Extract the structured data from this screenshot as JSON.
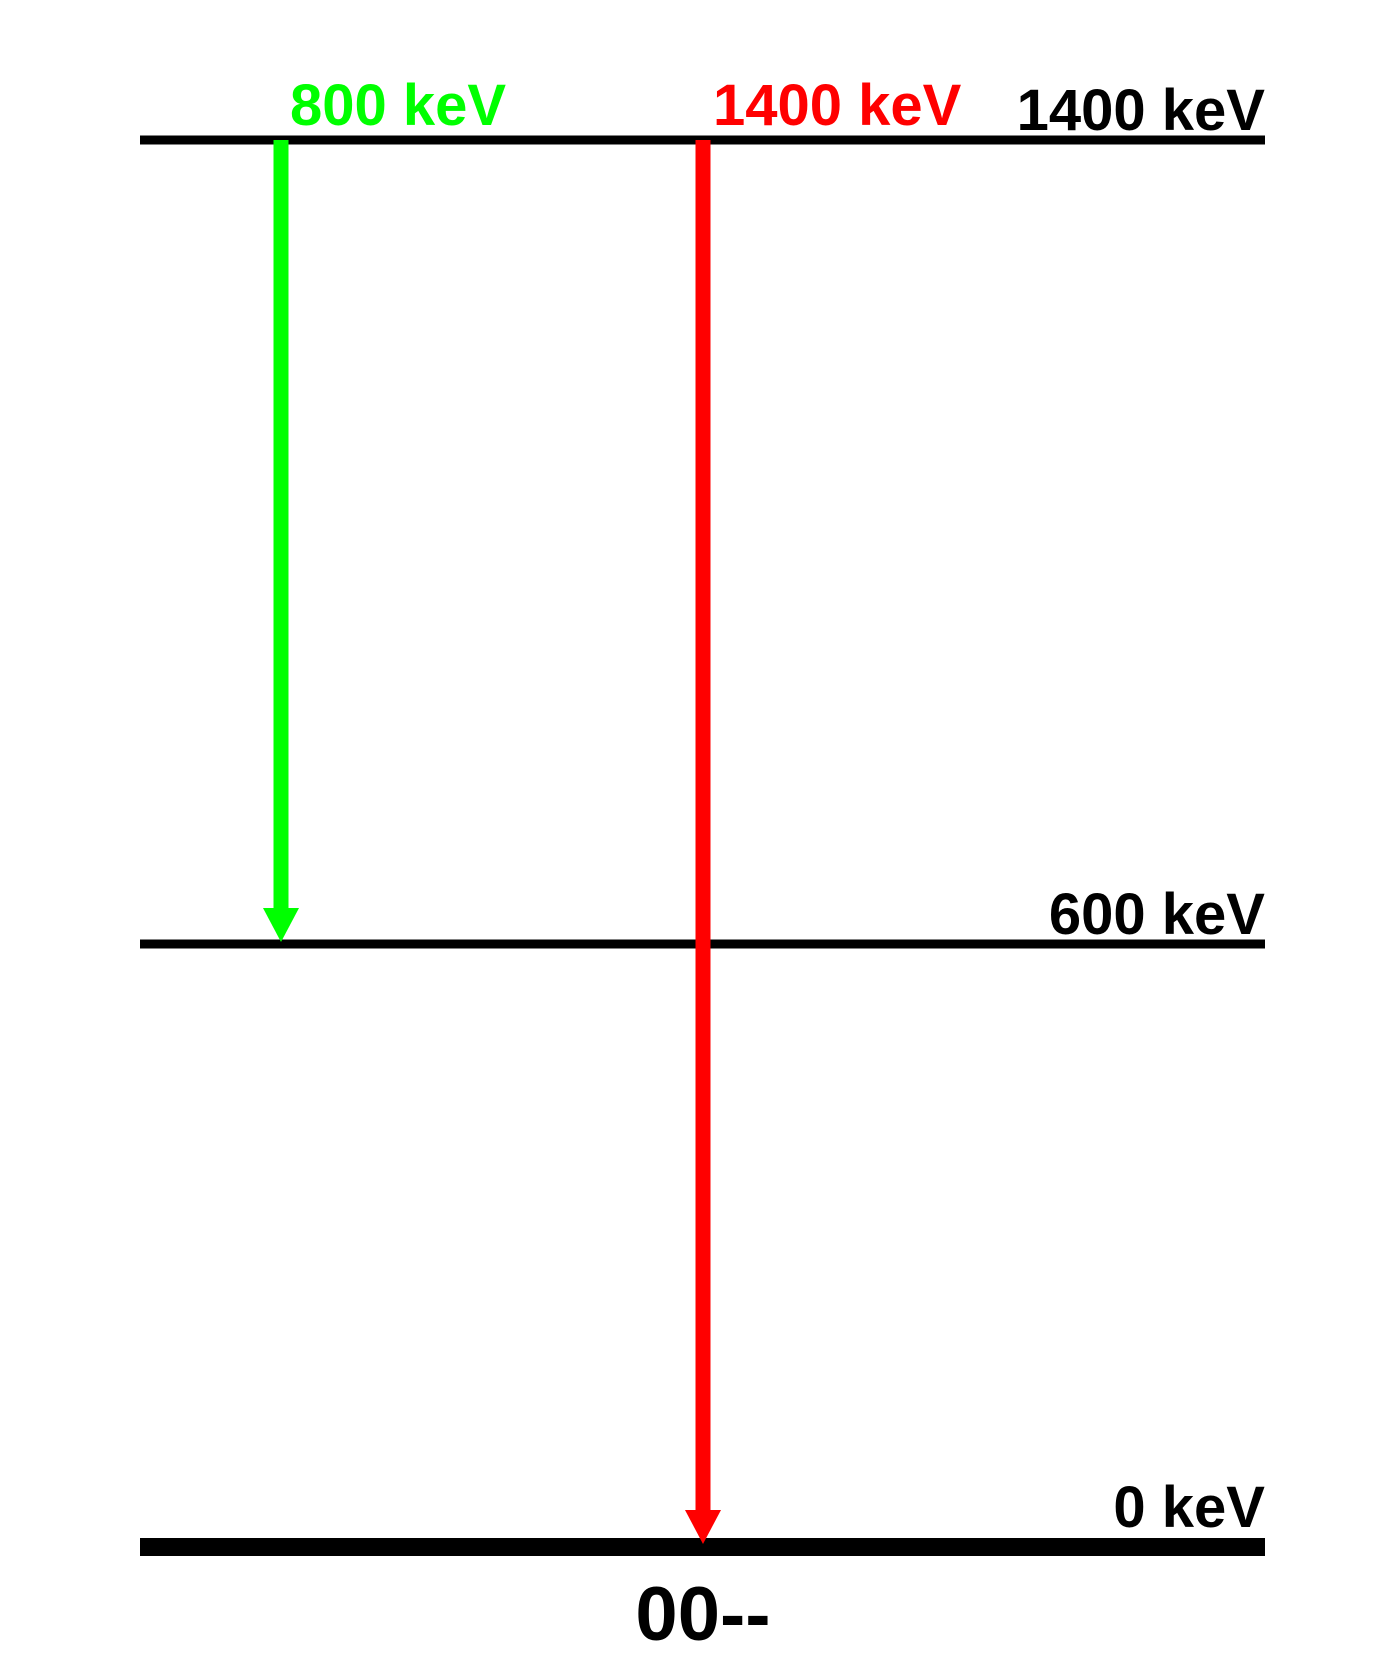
{
  "colors": {
    "level_line": "#000000",
    "transition_800": "#00ff00",
    "transition_1400": "#ff0000",
    "text": "#000000"
  },
  "levels": [
    {
      "energy_keV": 1400,
      "label": "1400 keV"
    },
    {
      "energy_keV": 600,
      "label": "600 keV"
    },
    {
      "energy_keV": 0,
      "label": "0 keV"
    }
  ],
  "transitions": [
    {
      "from_keV": 1400,
      "to_keV": 600,
      "label": "800 keV",
      "color": "#00ff00"
    },
    {
      "from_keV": 1400,
      "to_keV": 0,
      "label": "1400 keV",
      "color": "#ff0000"
    }
  ],
  "ground_label": "00--"
}
